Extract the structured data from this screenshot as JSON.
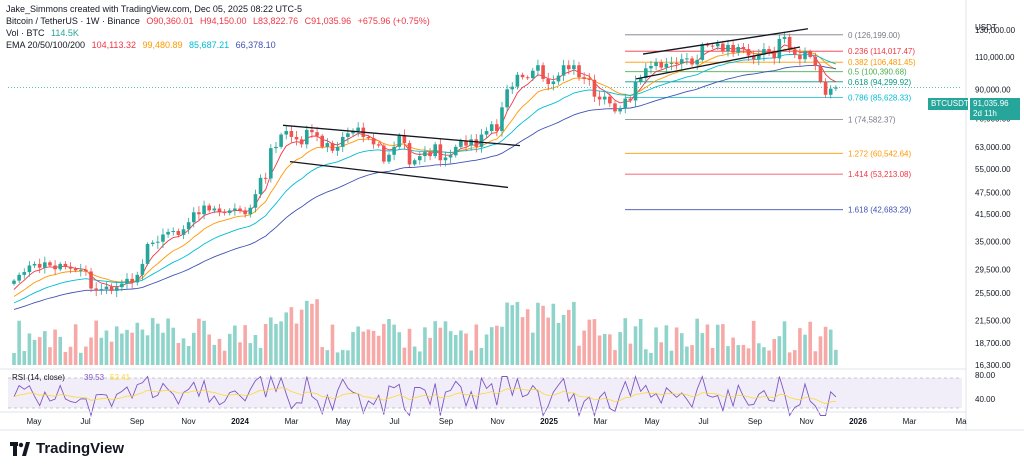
{
  "header": {
    "attribution": "Jake_Simmons created with TradingView.com, Dec 05, 2025 08:22 UTC-5",
    "symbol": "Bitcoin / TetherUS · 1W · Binance",
    "open": "O90,360.01",
    "high": "H94,150.00",
    "low": "L83,822.76",
    "close": "C91,035.96",
    "change": "+675.96 (+0.75%)",
    "vol_label": "Vol · BTC",
    "vol_value": "114.5K",
    "ema_label": "EMA 20/50/100/200",
    "ema20": "104,113.32",
    "ema50": "99,480.89",
    "ema100": "85,687.21",
    "ema200": "66,378.10"
  },
  "price_axis": {
    "unit": "USDT",
    "ticks": [
      "130,000.00",
      "110,000.00",
      "90,000.00",
      "75,000.00",
      "63,000.00",
      "55,000.00",
      "47,500.00",
      "41,500.00",
      "35,000.00",
      "29,500.00",
      "25,500.00",
      "21,500.00",
      "18,700.00",
      "16,300.00"
    ]
  },
  "current_price": {
    "symbol": "BTCUSDT",
    "price": "91,035.96",
    "countdown": "2d 11h"
  },
  "time_axis": [
    "May",
    "Jul",
    "Sep",
    "Nov",
    "2024",
    "Mar",
    "May",
    "Jul",
    "Sep",
    "Nov",
    "2025",
    "Mar",
    "May",
    "Jul",
    "Sep",
    "Nov",
    "2026",
    "Mar",
    "Ma"
  ],
  "rsi": {
    "label": "RSI (14, close)",
    "value1": "39.53",
    "value2": "52.41",
    "ticks": [
      "80.00",
      "40.00"
    ]
  },
  "fib_levels": [
    {
      "label": "0 (126,199.00)",
      "color": "#787b86"
    },
    {
      "label": "0.236 (114,017.47)",
      "color": "#f23645"
    },
    {
      "label": "0.382 (106,481.45)",
      "color": "#ff9800"
    },
    {
      "label": "0.5 (100,390.68)",
      "color": "#4caf50"
    },
    {
      "label": "0.618 (94,299.92)",
      "color": "#089981"
    },
    {
      "label": "0.786 (85,628.33)",
      "color": "#00bcd4"
    },
    {
      "label": "1 (74,582.37)",
      "color": "#787b86"
    },
    {
      "label": "1.272 (60,542.64)",
      "color": "#ff9800"
    },
    {
      "label": "1.414 (53,213.08)",
      "color": "#f23645"
    },
    {
      "label": "1.618 (42,683.29)",
      "color": "#3f51b5"
    }
  ],
  "chart_data": {
    "type": "candlestick",
    "title": "Bitcoin / TetherUS · 1W · Binance",
    "y_scale": "log",
    "ylim": [
      16300,
      130000
    ],
    "series": [
      {
        "name": "EMA 20",
        "color": "#f23645"
      },
      {
        "name": "EMA 50",
        "color": "#ff9800"
      },
      {
        "name": "EMA 100",
        "color": "#00bcd4"
      },
      {
        "name": "EMA 200",
        "color": "#3f51b5"
      }
    ],
    "closes": [
      27500,
      28500,
      29000,
      30200,
      30500,
      29800,
      30800,
      30200,
      29500,
      30500,
      30000,
      29600,
      29300,
      29400,
      29100,
      26200,
      26000,
      26100,
      26500,
      25800,
      26400,
      27000,
      27800,
      27200,
      28500,
      30500,
      34500,
      34800,
      35000,
      36600,
      37200,
      37400,
      36500,
      37800,
      39500,
      42000,
      41500,
      43800,
      42500,
      43000,
      42200,
      41800,
      42500,
      43000,
      42500,
      41500,
      43200,
      47000,
      52000,
      51800,
      62500,
      63000,
      68000,
      69500,
      67000,
      66000,
      64000,
      70000,
      69000,
      67500,
      63000,
      64500,
      61500,
      63000,
      67000,
      68500,
      69500,
      71000,
      67000,
      66500,
      64000,
      63500,
      57500,
      60000,
      63000,
      67500,
      64500,
      56500,
      58000,
      59500,
      61000,
      59500,
      64000,
      58000,
      59000,
      59800,
      63000,
      65500,
      63500,
      66000,
      63000,
      68000,
      69500,
      72500,
      69500,
      80500,
      90000,
      91500,
      98500,
      97000,
      96500,
      101000,
      104500,
      96000,
      93000,
      94500,
      98000,
      104500,
      102000,
      104500,
      97000,
      96000,
      95500,
      86000,
      84500,
      86000,
      82500,
      78500,
      80000,
      85000,
      84000,
      94500,
      96500,
      102500,
      104000,
      106500,
      103000,
      105500,
      106000,
      105500,
      108500,
      109000,
      105000,
      108000,
      119000,
      118000,
      117500,
      119500,
      114000,
      118500,
      113000,
      117000,
      115500,
      111000,
      108500,
      111500,
      115500,
      113000,
      109000,
      123000,
      124500,
      115000,
      111500,
      108500,
      114000,
      110000,
      104000,
      94500,
      87000,
      90360,
      91036
    ]
  }
}
